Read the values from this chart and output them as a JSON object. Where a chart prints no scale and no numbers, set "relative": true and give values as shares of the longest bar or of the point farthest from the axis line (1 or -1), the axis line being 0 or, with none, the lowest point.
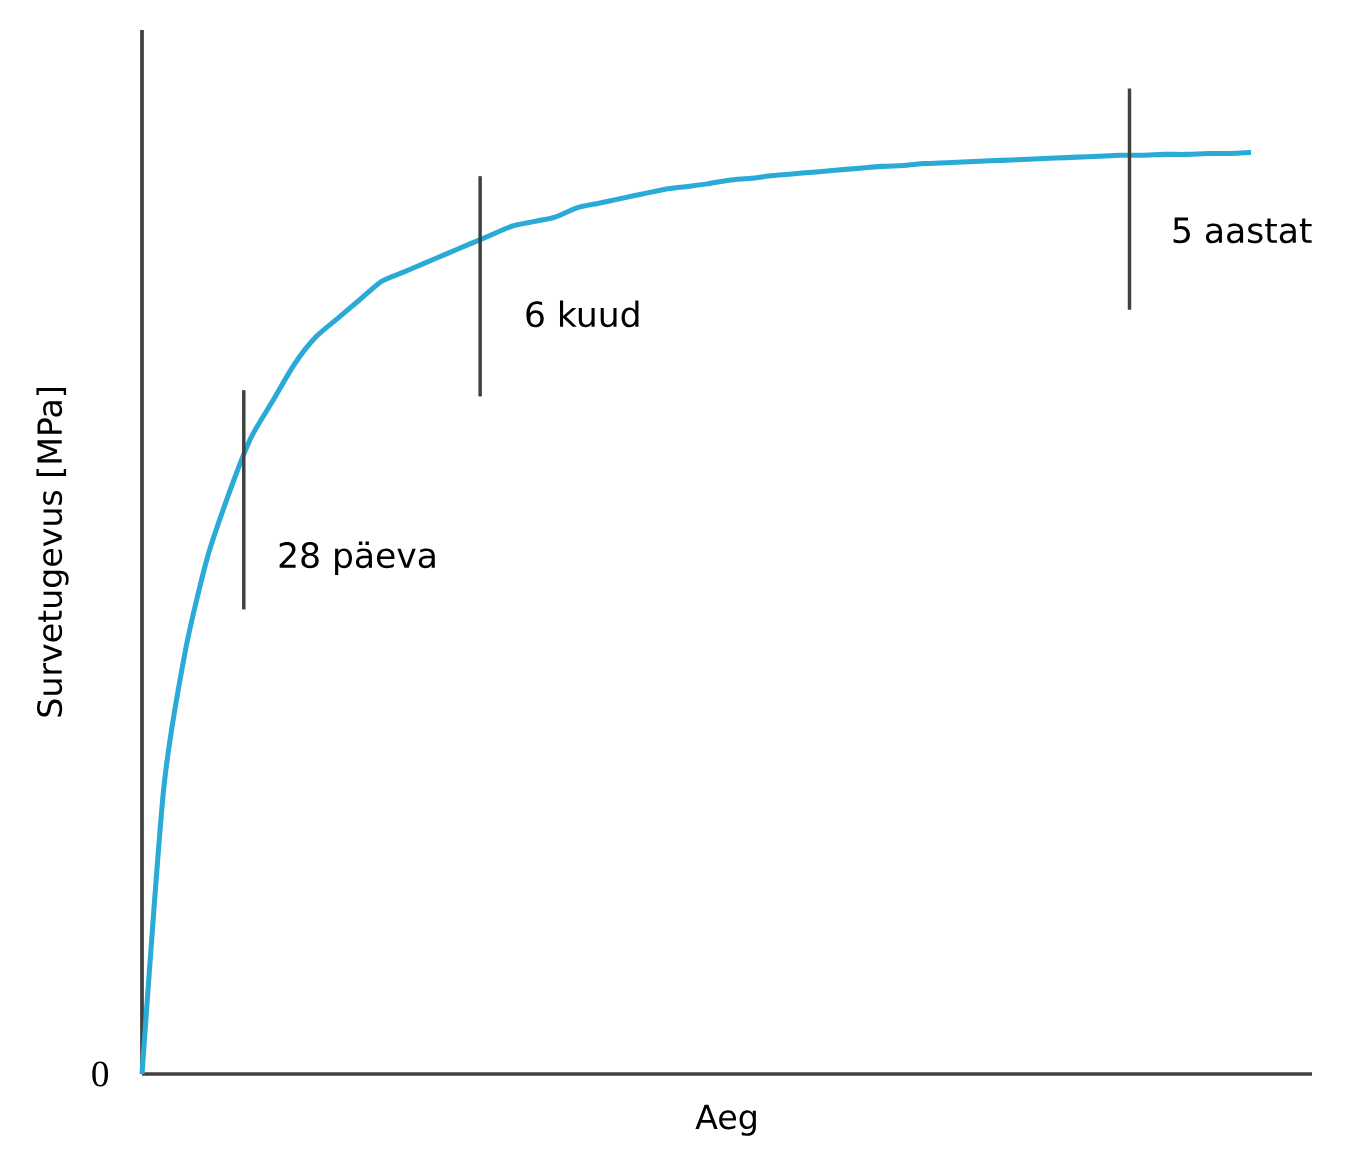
{
  "chart_data": {
    "type": "line",
    "relative": true,
    "xlabel": "Aeg",
    "ylabel": "Survetugevus [MPa]",
    "categories": [
      null,
      null,
      null,
      null,
      null,
      null,
      null,
      null,
      null,
      null,
      null,
      null,
      null,
      null,
      null,
      null,
      null,
      null,
      null,
      null,
      null,
      null,
      null,
      null,
      null,
      null,
      null,
      null,
      null,
      null,
      null,
      null,
      null,
      null,
      null,
      null,
      null,
      null,
      null,
      null,
      null,
      null,
      null,
      null,
      null,
      null,
      null,
      null,
      null,
      null,
      null,
      null
    ],
    "series": [
      {
        "color": "#2aaad6",
        "values": [
          0,
          0.31,
          0.46,
          0.56,
          0.63,
          0.69,
          0.73,
          0.77,
          0.8,
          0.82,
          0.84,
          0.86,
          0.87,
          0.88,
          0.89,
          0.9,
          0.91,
          0.92,
          0.925,
          0.93,
          0.94,
          0.945,
          0.95,
          0.955,
          0.96,
          0.963,
          0.966,
          0.97,
          0.972,
          0.975,
          0.977,
          0.979,
          0.981,
          0.983,
          0.985,
          0.986,
          0.988,
          0.989,
          0.99,
          0.991,
          0.992,
          0.993,
          0.994,
          0.995,
          0.996,
          0.997,
          0.997,
          0.998,
          0.998,
          0.999,
          0.999,
          1
        ]
      }
    ],
    "annotations": [
      "28 päeva",
      "6 kuud",
      "5 aastat",
      "0"
    ]
  }
}
